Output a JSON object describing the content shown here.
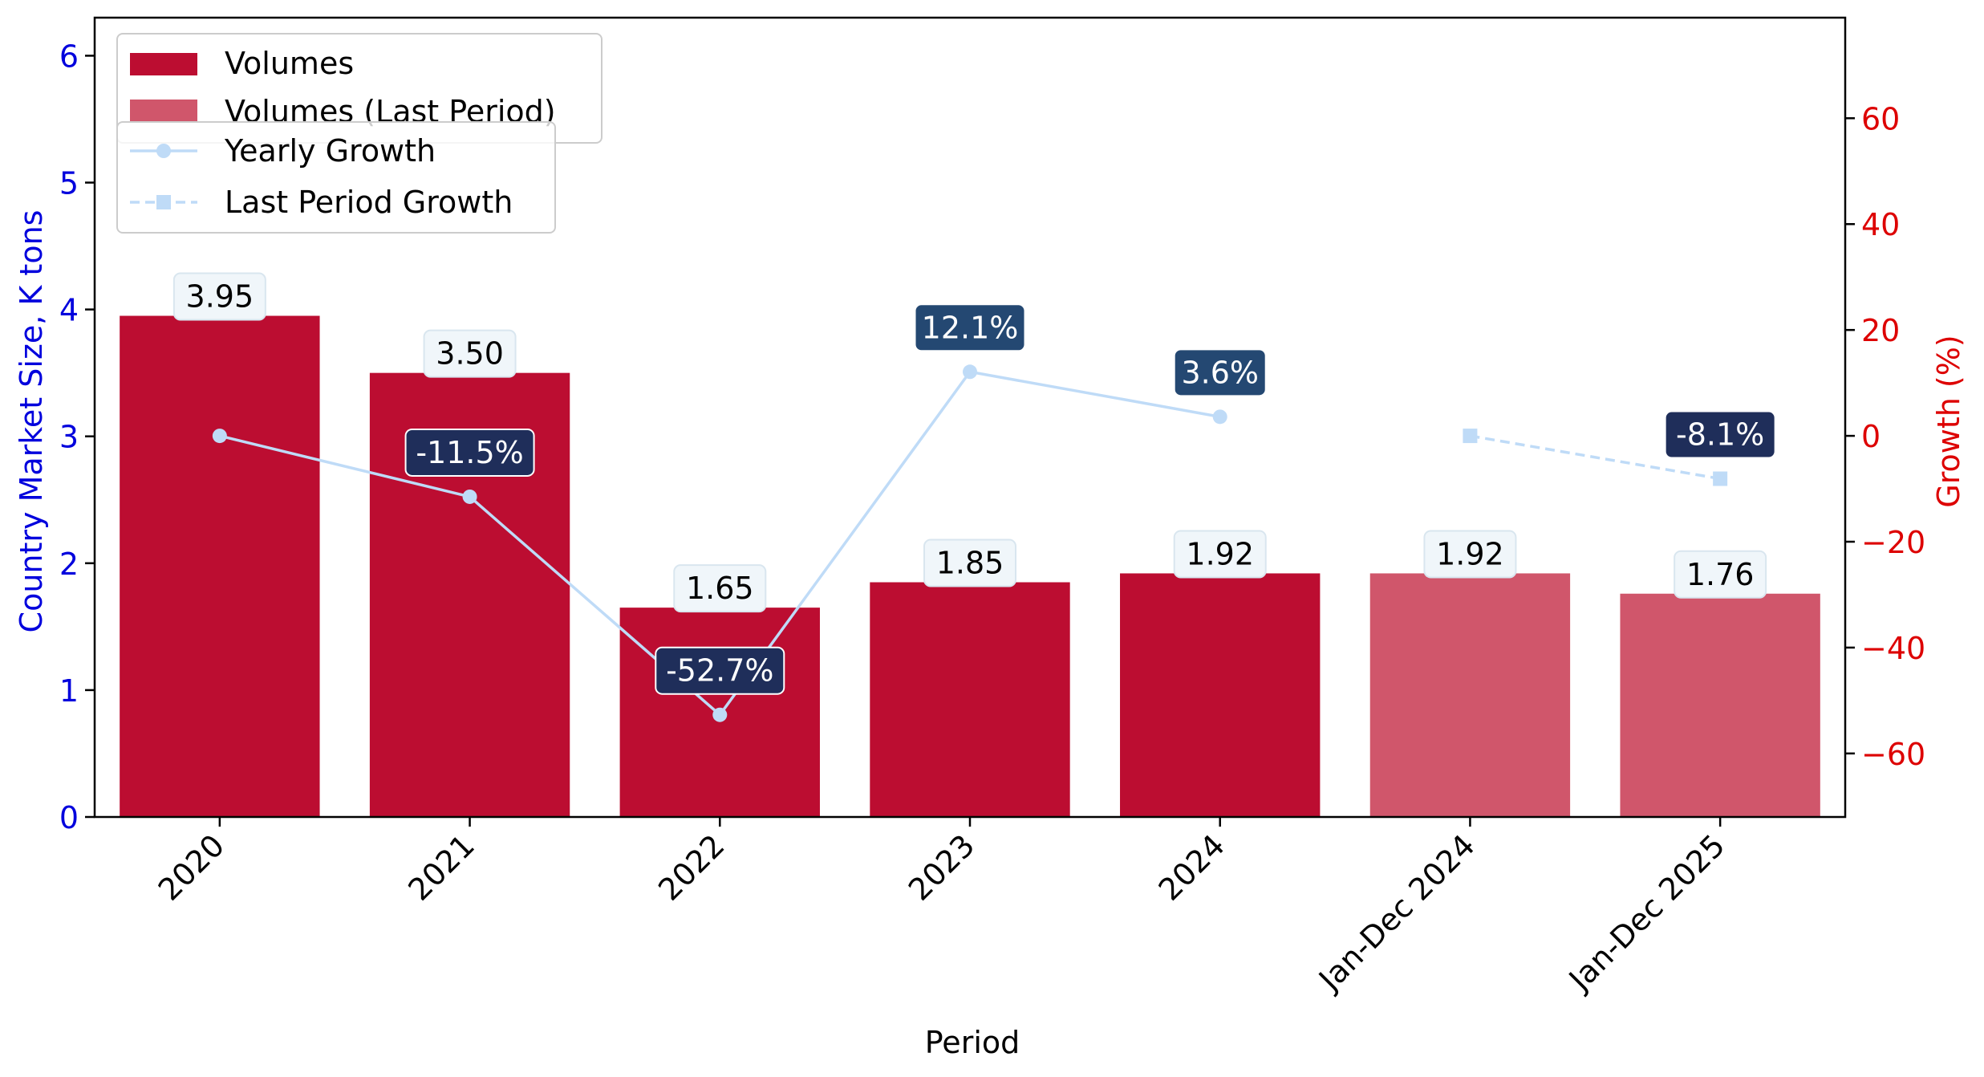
{
  "colors": {
    "volumes": "#BC0D31",
    "volumes_last": "#D0566B",
    "growth_line": "#BFDBF7",
    "left_axis": "#0000DD",
    "right_axis": "#DD0000",
    "label_box_fill": "#F0F6FA",
    "label_box_stroke": "#D9E6EF",
    "growth_box_dark": "#1F2E5A",
    "growth_box_mid": "#244872"
  },
  "chart_data": {
    "type": "bar",
    "xlabel": "Period",
    "ylabel_left": "Country Market Size, K tons",
    "ylabel_right": "Growth (%)",
    "categories": [
      "2020",
      "2021",
      "2022",
      "2023",
      "2024",
      "Jan-Dec 2024",
      "Jan-Dec 2025"
    ],
    "ylim_left": [
      0,
      6.3
    ],
    "ylim_right": [
      -72,
      79
    ],
    "yticks_left": [
      0,
      1,
      2,
      3,
      4,
      5,
      6
    ],
    "yticks_right": [
      -60,
      -40,
      -20,
      0,
      20,
      40,
      60
    ],
    "ytick_labels_right": [
      "−60",
      "−40",
      "−20",
      "0",
      "20",
      "40",
      "60"
    ],
    "series": [
      {
        "name": "Volumes",
        "type": "bar",
        "values": [
          3.95,
          3.5,
          1.65,
          1.85,
          1.92,
          null,
          null
        ],
        "labels": [
          "3.95",
          "3.50",
          "1.65",
          "1.85",
          "1.92",
          "",
          ""
        ]
      },
      {
        "name": "Volumes (Last Period)",
        "type": "bar",
        "values": [
          null,
          null,
          null,
          null,
          null,
          1.92,
          1.76
        ],
        "labels": [
          "",
          "",
          "",
          "",
          "",
          "1.92",
          "1.76"
        ]
      },
      {
        "name": "Yearly Growth",
        "type": "line",
        "values": [
          0,
          -11.5,
          -52.7,
          12.1,
          3.6,
          null,
          null
        ],
        "labels": [
          "",
          "-11.5%",
          "-52.7%",
          "12.1%",
          "3.6%",
          "",
          ""
        ]
      },
      {
        "name": "Last Period Growth",
        "type": "line",
        "values": [
          null,
          null,
          null,
          null,
          null,
          0,
          -8.1
        ],
        "labels": [
          "",
          "",
          "",
          "",
          "",
          "",
          "-8.1%"
        ]
      }
    ],
    "legend_placement": "top-left",
    "grid": false
  }
}
